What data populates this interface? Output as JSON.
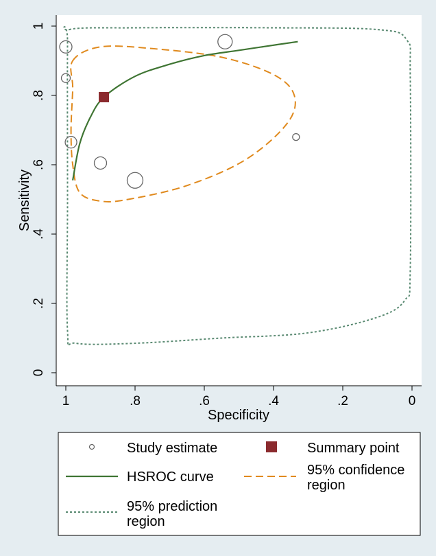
{
  "chart_data": {
    "type": "scatter",
    "title": "",
    "xlabel": "Specificity",
    "ylabel": "Sensitivity",
    "x_reversed": true,
    "xlim": [
      1,
      0
    ],
    "ylim": [
      0,
      1
    ],
    "xticks": [
      {
        "value": 1,
        "label": "1"
      },
      {
        "value": 0.8,
        "label": ".8"
      },
      {
        "value": 0.6,
        "label": ".6"
      },
      {
        "value": 0.4,
        "label": ".4"
      },
      {
        "value": 0.2,
        "label": ".2"
      },
      {
        "value": 0,
        "label": "0"
      }
    ],
    "yticks": [
      {
        "value": 0,
        "label": "0"
      },
      {
        "value": 0.2,
        "label": ".2"
      },
      {
        "value": 0.4,
        "label": ".4"
      },
      {
        "value": 0.6,
        "label": ".6"
      },
      {
        "value": 0.8,
        "label": ".8"
      },
      {
        "value": 1,
        "label": "1"
      }
    ],
    "grid": false,
    "series": [
      {
        "name": "Study estimate",
        "kind": "scatter-hollow-circles",
        "color": "#666666",
        "points": [
          {
            "specificity": 1.0,
            "sensitivity": 0.94,
            "weight": 0.9
          },
          {
            "specificity": 1.0,
            "sensitivity": 0.85,
            "weight": 0.65
          },
          {
            "specificity": 0.985,
            "sensitivity": 0.665,
            "weight": 0.85
          },
          {
            "specificity": 0.9,
            "sensitivity": 0.605,
            "weight": 0.9
          },
          {
            "specificity": 0.8,
            "sensitivity": 0.555,
            "weight": 1.15
          },
          {
            "specificity": 0.54,
            "sensitivity": 0.955,
            "weight": 1.05
          },
          {
            "specificity": 0.335,
            "sensitivity": 0.68,
            "weight": 0.5
          }
        ]
      },
      {
        "name": "Summary point",
        "kind": "marker-square",
        "color": "#8b2a2e",
        "points": [
          {
            "specificity": 0.89,
            "sensitivity": 0.795
          }
        ]
      },
      {
        "name": "HSROC curve",
        "kind": "line",
        "color": "#3f7533",
        "points": [
          {
            "specificity": 0.98,
            "sensitivity": 0.555
          },
          {
            "specificity": 0.96,
            "sensitivity": 0.66
          },
          {
            "specificity": 0.93,
            "sensitivity": 0.735
          },
          {
            "specificity": 0.89,
            "sensitivity": 0.795
          },
          {
            "specificity": 0.8,
            "sensitivity": 0.855
          },
          {
            "specificity": 0.7,
            "sensitivity": 0.89
          },
          {
            "specificity": 0.6,
            "sensitivity": 0.915
          },
          {
            "specificity": 0.5,
            "sensitivity": 0.93
          },
          {
            "specificity": 0.4,
            "sensitivity": 0.945
          },
          {
            "specificity": 0.33,
            "sensitivity": 0.955
          }
        ]
      },
      {
        "name": "95% confidence region",
        "kind": "closed-dashed",
        "color": "#e08a1e",
        "points": [
          {
            "specificity": 0.98,
            "sensitivity": 0.9
          },
          {
            "specificity": 0.9,
            "sensitivity": 0.94
          },
          {
            "specificity": 0.75,
            "sensitivity": 0.935
          },
          {
            "specificity": 0.55,
            "sensitivity": 0.91
          },
          {
            "specificity": 0.4,
            "sensitivity": 0.86
          },
          {
            "specificity": 0.34,
            "sensitivity": 0.8
          },
          {
            "specificity": 0.36,
            "sensitivity": 0.72
          },
          {
            "specificity": 0.48,
            "sensitivity": 0.615
          },
          {
            "specificity": 0.65,
            "sensitivity": 0.54
          },
          {
            "specificity": 0.82,
            "sensitivity": 0.5
          },
          {
            "specificity": 0.9,
            "sensitivity": 0.495
          },
          {
            "specificity": 0.96,
            "sensitivity": 0.52
          },
          {
            "specificity": 0.98,
            "sensitivity": 0.6
          },
          {
            "specificity": 0.985,
            "sensitivity": 0.7
          },
          {
            "specificity": 0.98,
            "sensitivity": 0.82
          }
        ]
      },
      {
        "name": "95% prediction region",
        "kind": "closed-dotted",
        "color": "#5a8a72",
        "points": [
          {
            "specificity": 0.99,
            "sensitivity": 0.99
          },
          {
            "specificity": 0.8,
            "sensitivity": 0.995
          },
          {
            "specificity": 0.4,
            "sensitivity": 0.995
          },
          {
            "specificity": 0.1,
            "sensitivity": 0.99
          },
          {
            "specificity": 0.015,
            "sensitivity": 0.96
          },
          {
            "specificity": 0.005,
            "sensitivity": 0.85
          },
          {
            "specificity": 0.005,
            "sensitivity": 0.3
          },
          {
            "specificity": 0.02,
            "sensitivity": 0.21
          },
          {
            "specificity": 0.1,
            "sensitivity": 0.16
          },
          {
            "specificity": 0.3,
            "sensitivity": 0.115
          },
          {
            "specificity": 0.55,
            "sensitivity": 0.1
          },
          {
            "specificity": 0.8,
            "sensitivity": 0.085
          },
          {
            "specificity": 0.97,
            "sensitivity": 0.085
          },
          {
            "specificity": 0.995,
            "sensitivity": 0.12
          },
          {
            "specificity": 0.995,
            "sensitivity": 0.5
          },
          {
            "specificity": 0.995,
            "sensitivity": 0.95
          }
        ]
      }
    ],
    "legend": {
      "placement": "bottom",
      "items": [
        {
          "key": "study",
          "lines": [
            "Study estimate"
          ]
        },
        {
          "key": "summary",
          "lines": [
            "Summary point"
          ]
        },
        {
          "key": "hsroc",
          "lines": [
            "HSROC curve"
          ]
        },
        {
          "key": "confidence",
          "lines": [
            "95% confidence",
            "region"
          ]
        },
        {
          "key": "prediction",
          "lines": [
            "95% prediction",
            "region"
          ]
        }
      ]
    }
  }
}
